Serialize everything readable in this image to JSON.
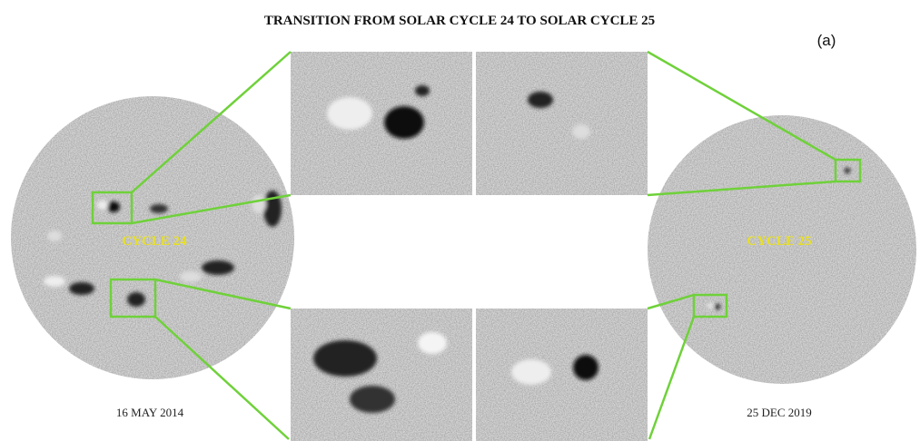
{
  "header": {
    "title": "TRANSITION FROM SOLAR CYCLE 24 TO SOLAR CYCLE 25",
    "panel_label": "(a)"
  },
  "left_disk": {
    "label": "CYCLE 24",
    "date": "16 MAY 2014"
  },
  "right_disk": {
    "label": "CYCLE 25",
    "date": "25 DEC 2019"
  }
}
